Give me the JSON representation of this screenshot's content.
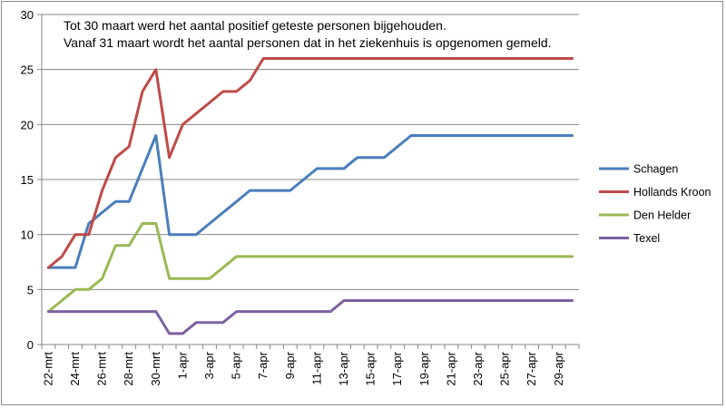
{
  "chart_data": {
    "type": "line",
    "annotation_lines": [
      "Tot 30 maart werd het aantal positief geteste personen bijgehouden.",
      "Vanaf 31 maart wordt het aantal personen dat in het ziekenhuis is opgenomen gemeld."
    ],
    "categories": [
      "22-mrt",
      "23-mrt",
      "24-mrt",
      "25-mrt",
      "26-mrt",
      "27-mrt",
      "28-mrt",
      "29-mrt",
      "30-mrt",
      "31-mrt",
      "1-apr",
      "2-apr",
      "3-apr",
      "4-apr",
      "5-apr",
      "6-apr",
      "7-apr",
      "8-apr",
      "9-apr",
      "10-apr",
      "11-apr",
      "12-apr",
      "13-apr",
      "14-apr",
      "15-apr",
      "16-apr",
      "17-apr",
      "18-apr",
      "19-apr",
      "20-apr",
      "21-apr",
      "22-apr",
      "23-apr",
      "24-apr",
      "25-apr",
      "26-apr",
      "27-apr",
      "28-apr",
      "29-apr",
      "30-apr"
    ],
    "shown_tick_labels": [
      "22-mrt",
      "24-mrt",
      "26-mrt",
      "28-mrt",
      "30-mrt",
      "1-apr",
      "3-apr",
      "5-apr",
      "7-apr",
      "9-apr",
      "11-apr",
      "13-apr",
      "15-apr",
      "17-apr",
      "19-apr",
      "21-apr",
      "23-apr",
      "25-apr",
      "27-apr",
      "29-apr"
    ],
    "y_ticks": [
      0,
      5,
      10,
      15,
      20,
      25,
      30
    ],
    "ylim": [
      0,
      30
    ],
    "grid": "horizontal",
    "legend_position": "right",
    "series": [
      {
        "name": "Schagen",
        "color": "#4a7ebb",
        "values": [
          7,
          7,
          7,
          11,
          12,
          13,
          13,
          16,
          19,
          10,
          10,
          10,
          11,
          12,
          13,
          14,
          14,
          14,
          14,
          15,
          16,
          16,
          16,
          17,
          17,
          17,
          18,
          19,
          19,
          19,
          19,
          19,
          19,
          19,
          19,
          19,
          19,
          19,
          19,
          19
        ]
      },
      {
        "name": "Hollands Kroon",
        "color": "#be4b48",
        "values": [
          7,
          8,
          10,
          10,
          14,
          17,
          18,
          23,
          25,
          17,
          20,
          21,
          22,
          23,
          23,
          24,
          26,
          26,
          26,
          26,
          26,
          26,
          26,
          26,
          26,
          26,
          26,
          26,
          26,
          26,
          26,
          26,
          26,
          26,
          26,
          26,
          26,
          26,
          26,
          26
        ]
      },
      {
        "name": "Den Helder",
        "color": "#98b954",
        "values": [
          3,
          4,
          5,
          5,
          6,
          9,
          9,
          11,
          11,
          6,
          6,
          6,
          6,
          7,
          8,
          8,
          8,
          8,
          8,
          8,
          8,
          8,
          8,
          8,
          8,
          8,
          8,
          8,
          8,
          8,
          8,
          8,
          8,
          8,
          8,
          8,
          8,
          8,
          8,
          8
        ]
      },
      {
        "name": "Texel",
        "color": "#7d60a0",
        "values": [
          3,
          3,
          3,
          3,
          3,
          3,
          3,
          3,
          3,
          1,
          1,
          2,
          2,
          2,
          3,
          3,
          3,
          3,
          3,
          3,
          3,
          3,
          4,
          4,
          4,
          4,
          4,
          4,
          4,
          4,
          4,
          4,
          4,
          4,
          4,
          4,
          4,
          4,
          4,
          4
        ]
      }
    ]
  }
}
